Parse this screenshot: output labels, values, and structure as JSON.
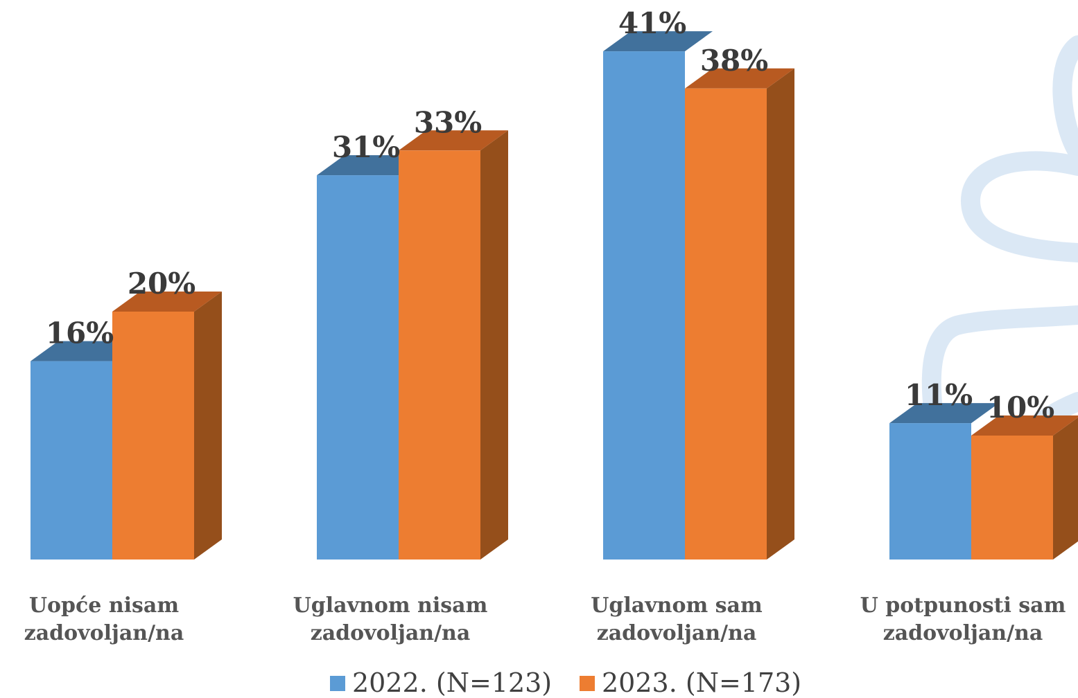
{
  "chart_data": {
    "type": "bar",
    "categories": [
      [
        "Uopće nisam",
        "zadovoljan/na"
      ],
      [
        "Uglavnom nisam",
        "zadovoljan/na"
      ],
      [
        "Uglavnom sam",
        "zadovoljan/na"
      ],
      [
        "U potpunosti sam",
        "zadovoljan/na"
      ]
    ],
    "series": [
      {
        "name": "2022. (N=123)",
        "values": [
          16,
          31,
          41,
          11
        ],
        "labels": [
          "16%",
          "31%",
          "41%",
          "11%"
        ],
        "color": "#5b9bd5",
        "top_color": "#41719c"
      },
      {
        "name": "2023. (N=173)",
        "values": [
          20,
          33,
          38,
          10
        ],
        "labels": [
          "20%",
          "33%",
          "38%",
          "10%"
        ],
        "color": "#ed7d31",
        "top_color": "#b85a21",
        "side_color": "#954f1b"
      }
    ],
    "ylim": [
      0,
      41
    ],
    "unit": "%",
    "grid": false,
    "legend": "bottom",
    "style": "3d-column"
  }
}
